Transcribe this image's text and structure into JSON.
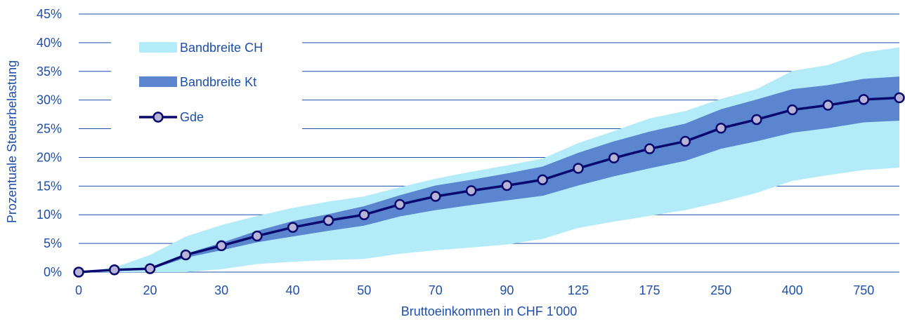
{
  "chart_data": {
    "type": "area",
    "xlabel": "Bruttoeinkommen in CHF 1'000",
    "ylabel": "Prozentuale Steuerbelastung",
    "ylim": [
      0,
      45
    ],
    "y_ticks": [
      "0%",
      "5%",
      "10%",
      "15%",
      "20%",
      "25%",
      "30%",
      "35%",
      "40%",
      "45%"
    ],
    "x_positions": [
      "0",
      "10",
      "20",
      "25",
      "30",
      "35",
      "40",
      "45",
      "50",
      "60",
      "70",
      "80",
      "90",
      "100",
      "125",
      "150",
      "175",
      "200",
      "250",
      "300",
      "400",
      "500",
      "750",
      "1000"
    ],
    "x_tick_labels": [
      "0",
      "20",
      "30",
      "40",
      "50",
      "70",
      "90",
      "125",
      "175",
      "250",
      "400",
      "750"
    ],
    "x_tick_indices": [
      0,
      2,
      4,
      6,
      8,
      10,
      12,
      14,
      16,
      18,
      20,
      22
    ],
    "grid": true,
    "legend_placement": "top-left",
    "series": [
      {
        "name": "Bandbreite CH",
        "kind": "band",
        "color": "#b3ecf8",
        "upper": [
          0,
          0.8,
          3,
          6.2,
          8.2,
          9.8,
          11.2,
          12.3,
          13.2,
          14.8,
          16.3,
          17.5,
          18.6,
          19.8,
          22.5,
          24.6,
          26.8,
          28.1,
          30.2,
          31.9,
          35.1,
          36.1,
          38.3,
          39.2
        ],
        "lower": [
          0,
          0,
          0,
          0,
          0.5,
          1.4,
          1.8,
          2.1,
          2.3,
          3.2,
          3.8,
          4.3,
          4.8,
          5.8,
          7.7,
          8.8,
          9.8,
          10.8,
          12.2,
          13.8,
          15.9,
          16.9,
          17.8,
          18.2
        ]
      },
      {
        "name": "Bandbreite Kt",
        "kind": "band",
        "color": "#5b86cf",
        "upper": [
          0,
          0.5,
          0.8,
          3.2,
          5.1,
          7.2,
          8.9,
          10.1,
          11.5,
          13.4,
          15.1,
          16.1,
          17.2,
          18.4,
          20.8,
          22.8,
          24.5,
          25.9,
          28.4,
          30.1,
          31.9,
          32.6,
          33.7,
          34.1
        ],
        "lower": [
          0,
          0.2,
          0.4,
          2.5,
          3.8,
          5.2,
          6.2,
          7.2,
          8.1,
          9.7,
          10.8,
          11.7,
          12.5,
          13.3,
          15.1,
          16.7,
          18.1,
          19.4,
          21.5,
          22.8,
          24.3,
          25.1,
          26.1,
          26.4
        ]
      },
      {
        "name": "Gde",
        "kind": "line",
        "color": "#0a0a6e",
        "marker_fill": "#b8b4d6",
        "values": [
          0,
          0.4,
          0.6,
          3,
          4.6,
          6.3,
          7.8,
          9,
          10,
          11.8,
          13.2,
          14.2,
          15.1,
          16.1,
          18.1,
          19.9,
          21.5,
          22.8,
          25.1,
          26.6,
          28.3,
          29.1,
          30.1,
          30.4
        ]
      }
    ]
  }
}
